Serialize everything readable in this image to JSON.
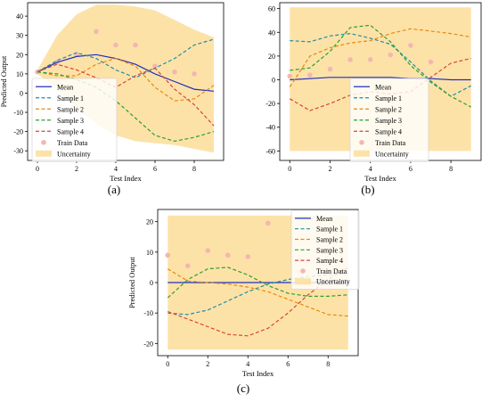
{
  "figure": {
    "panel_labels": [
      "(a)",
      "(b)",
      "(c)"
    ]
  },
  "chart_data": [
    {
      "type": "line",
      "panel_label": "(a)",
      "xlabel": "Test Index",
      "ylabel": "Predicted Output",
      "xlim": [
        -0.5,
        9.5
      ],
      "ylim": [
        -35,
        47
      ],
      "xticks": [
        0,
        2,
        4,
        6,
        8
      ],
      "yticks": [
        -30,
        -20,
        -10,
        0,
        10,
        20,
        30,
        40
      ],
      "grid": false,
      "legend_position": "lower-left",
      "x": [
        0,
        1,
        2,
        3,
        4,
        5,
        6,
        7,
        8,
        9
      ],
      "uncertainty": {
        "name": "Uncertainty",
        "color": "#fde2a8",
        "lower": [
          10,
          2,
          -8,
          -16,
          -22,
          -25,
          -26,
          -27,
          -29,
          -31
        ],
        "upper": [
          12,
          30,
          41,
          46,
          46,
          45,
          43,
          38,
          33,
          29
        ]
      },
      "train_data": {
        "name": "Train Data",
        "color": "#f4b6b0",
        "x": [
          0,
          1,
          2,
          3,
          4,
          5,
          6,
          7,
          8
        ],
        "y": [
          11,
          16,
          20,
          32,
          25,
          25,
          14,
          11,
          10
        ]
      },
      "series": [
        {
          "name": "Mean",
          "style": "solid",
          "color": "#1f2fbf",
          "values": [
            11,
            16,
            19,
            20,
            18,
            15,
            10,
            6,
            2,
            1
          ]
        },
        {
          "name": "Sample 1",
          "style": "dashed",
          "color": "#1f8fa6",
          "values": [
            11,
            17,
            21,
            18,
            12,
            8,
            13,
            18,
            25,
            28
          ]
        },
        {
          "name": "Sample 2",
          "style": "dashed",
          "color": "#e8890c",
          "values": [
            11,
            9,
            9,
            15,
            18,
            14,
            3,
            -4,
            -3,
            4
          ]
        },
        {
          "name": "Sample 3",
          "style": "dashed",
          "color": "#2ca02c",
          "values": [
            11,
            10,
            7,
            3,
            -4,
            -13,
            -22,
            -25,
            -23,
            -20
          ]
        },
        {
          "name": "Sample 4",
          "style": "dashed",
          "color": "#d6453a",
          "values": [
            11,
            15,
            12,
            8,
            3,
            9,
            13,
            2,
            -6,
            -17
          ]
        }
      ]
    },
    {
      "type": "line",
      "panel_label": "(b)",
      "xlabel": "Test Index",
      "ylabel": "",
      "xlim": [
        -0.5,
        9.5
      ],
      "ylim": [
        -68,
        65
      ],
      "xticks": [
        0,
        2,
        4,
        6,
        8
      ],
      "yticks": [
        -60,
        -40,
        -20,
        0,
        20,
        40,
        60
      ],
      "grid": false,
      "legend_position": "lower-center",
      "x": [
        0,
        1,
        2,
        3,
        4,
        5,
        6,
        7,
        8,
        9
      ],
      "uncertainty": {
        "name": "Uncertainty",
        "color": "#fde2a8",
        "lower": [
          -60,
          -60,
          -60,
          -60,
          -60,
          -60,
          -60,
          -60,
          -60,
          -60
        ],
        "upper": [
          61,
          61,
          61,
          61,
          61,
          61,
          61,
          61,
          61,
          61
        ]
      },
      "train_data": {
        "name": "Train Data",
        "color": "#f4b6b0",
        "x": [
          0,
          1,
          2,
          3,
          4,
          5,
          6,
          7
        ],
        "y": [
          3,
          4,
          9,
          17,
          17,
          21,
          29,
          15
        ]
      },
      "series": [
        {
          "name": "Mean",
          "style": "solid",
          "color": "#1f2fbf",
          "values": [
            0,
            1,
            2,
            2,
            2,
            2,
            1,
            1,
            0,
            0
          ]
        },
        {
          "name": "Sample 1",
          "style": "dashed",
          "color": "#1f8fa6",
          "values": [
            33,
            32,
            37,
            39,
            35,
            30,
            15,
            -1,
            -14,
            -5
          ]
        },
        {
          "name": "Sample 2",
          "style": "dashed",
          "color": "#e8890c",
          "values": [
            -6,
            20,
            27,
            31,
            33,
            39,
            43,
            41,
            39,
            36
          ]
        },
        {
          "name": "Sample 3",
          "style": "dashed",
          "color": "#2ca02c",
          "values": [
            8,
            10,
            24,
            44,
            46,
            32,
            12,
            -2,
            -14,
            -23
          ]
        },
        {
          "name": "Sample 4",
          "style": "dashed",
          "color": "#d6453a",
          "values": [
            -16,
            -26,
            -20,
            -13,
            -10,
            -12,
            -10,
            2,
            14,
            18
          ]
        }
      ]
    },
    {
      "type": "line",
      "panel_label": "(c)",
      "xlabel": "Test Index",
      "ylabel": "Predicted Output",
      "xlim": [
        -0.5,
        9.5
      ],
      "ylim": [
        -24,
        24
      ],
      "xticks": [
        0,
        2,
        4,
        6,
        8
      ],
      "yticks": [
        -20,
        -10,
        0,
        10,
        20
      ],
      "grid": false,
      "legend_position": "top-right",
      "x": [
        0,
        1,
        2,
        3,
        4,
        5,
        6,
        7,
        8,
        9
      ],
      "uncertainty": {
        "name": "Uncertainty",
        "color": "#fde2a8",
        "lower": [
          -22,
          -22,
          -22,
          -22,
          -22,
          -22,
          -22,
          -22,
          -22,
          -22
        ],
        "upper": [
          22,
          22,
          22,
          22,
          22,
          22,
          22,
          22,
          22,
          22
        ]
      },
      "train_data": {
        "name": "Train Data",
        "color": "#f4b6b0",
        "x": [
          0,
          1,
          2,
          3,
          4,
          5
        ],
        "y": [
          9,
          5.5,
          10.5,
          9,
          8.5,
          19.5
        ]
      },
      "series": [
        {
          "name": "Mean",
          "style": "solid",
          "color": "#1f2fbf",
          "values": [
            0,
            0,
            0,
            0,
            0,
            0,
            0,
            0,
            0,
            0
          ]
        },
        {
          "name": "Sample 1",
          "style": "dashed",
          "color": "#1f8fa6",
          "values": [
            -10,
            -10.5,
            -9,
            -6,
            -3,
            -0.5,
            1,
            2,
            2.5,
            3
          ]
        },
        {
          "name": "Sample 2",
          "style": "dashed",
          "color": "#e8890c",
          "values": [
            4.5,
            0.5,
            0,
            -0.5,
            -1.5,
            -3,
            -5.5,
            -8,
            -10.5,
            -11
          ]
        },
        {
          "name": "Sample 3",
          "style": "dashed",
          "color": "#2ca02c",
          "values": [
            -5,
            1,
            4.5,
            5,
            2.5,
            -1,
            -3.5,
            -4.5,
            -4.5,
            -4
          ]
        },
        {
          "name": "Sample 4",
          "style": "dashed",
          "color": "#d6453a",
          "values": [
            -9.5,
            -12,
            -14.5,
            -17,
            -17.5,
            -15,
            -10,
            -4,
            1,
            5
          ]
        }
      ]
    }
  ]
}
